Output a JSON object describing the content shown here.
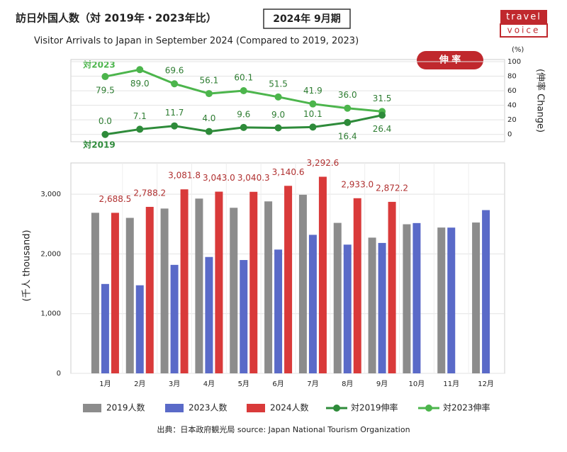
{
  "header": {
    "title": "訪日外国人数（対 2019年・2023年比）",
    "badge": "2024年 9月期",
    "subtitle": "Visitor Arrivals to Japan in September 2024 (Compared to 2019, 2023)",
    "logo": [
      "travel",
      "voice"
    ]
  },
  "chart_data": [
    {
      "type": "line",
      "unit": "(%)",
      "badge": "伸 率",
      "y2_label": "(伸率 Change)",
      "annotations": [
        "対2023",
        "対2019"
      ],
      "y2lim": [
        -10,
        100
      ],
      "y2ticks": [
        0,
        20,
        40,
        60,
        80,
        100
      ],
      "grid": true,
      "series": [
        {
          "name": "対2023伸率",
          "color": "#4cb54c",
          "axis": "y2",
          "values": [
            79.5,
            89.0,
            69.6,
            56.1,
            60.1,
            51.5,
            41.9,
            36.0,
            31.5
          ],
          "value_labels": [
            "79.5",
            "89.0",
            "69.6",
            "56.1",
            "60.1",
            "51.5",
            "41.9",
            "36.0",
            "31.5"
          ]
        },
        {
          "name": "対2019伸率",
          "color": "#2e8b3a",
          "axis": "y2",
          "values": [
            0.0,
            7.1,
            11.7,
            4.0,
            9.6,
            9.0,
            10.1,
            16.4,
            26.4
          ],
          "value_labels": [
            "0.0",
            "7.1",
            "11.7",
            "4.0",
            "9.6",
            "9.0",
            "10.1",
            "16.4",
            "26.4"
          ]
        }
      ]
    },
    {
      "type": "bar",
      "y_label": "(千人 thousand)",
      "categories": [
        "1月",
        "2月",
        "3月",
        "4月",
        "5月",
        "6月",
        "7月",
        "8月",
        "9月",
        "10月",
        "11月",
        "12月"
      ],
      "ylim": [
        0,
        3500
      ],
      "yticks": [
        0,
        {
          "value": 1000,
          "label": "1,000"
        },
        {
          "value": 2000,
          "label": "2,000"
        },
        {
          "value": 3000,
          "label": "3,000"
        }
      ],
      "grid": true,
      "series": [
        {
          "name": "2019人数",
          "color": "#8c8c8c",
          "values": [
            2689,
            2604,
            2760,
            2927,
            2773,
            2880,
            2991,
            2520,
            2273,
            2497,
            2442,
            2526
          ]
        },
        {
          "name": "2023人数",
          "color": "#5a6ac8",
          "values": [
            1497,
            1475,
            1817,
            1949,
            1898,
            2073,
            2320,
            2156,
            2184,
            2517,
            2441,
            2734
          ]
        },
        {
          "name": "2024人数",
          "color": "#d93a3a",
          "values": [
            2688.5,
            2788.2,
            3081.8,
            3043.0,
            3040.3,
            3140.6,
            3292.6,
            2933.0,
            2872.2,
            null,
            null,
            null
          ],
          "value_labels": [
            "2,688.5",
            "2,788.2",
            "3,081.8",
            "3,043.0",
            "3,040.3",
            "3,140.6",
            "3,292.6",
            "2,933.0",
            "2,872.2",
            null,
            null,
            null
          ]
        }
      ]
    }
  ],
  "source": "出典：日本政府観光局  source: Japan National Tourism Organization"
}
